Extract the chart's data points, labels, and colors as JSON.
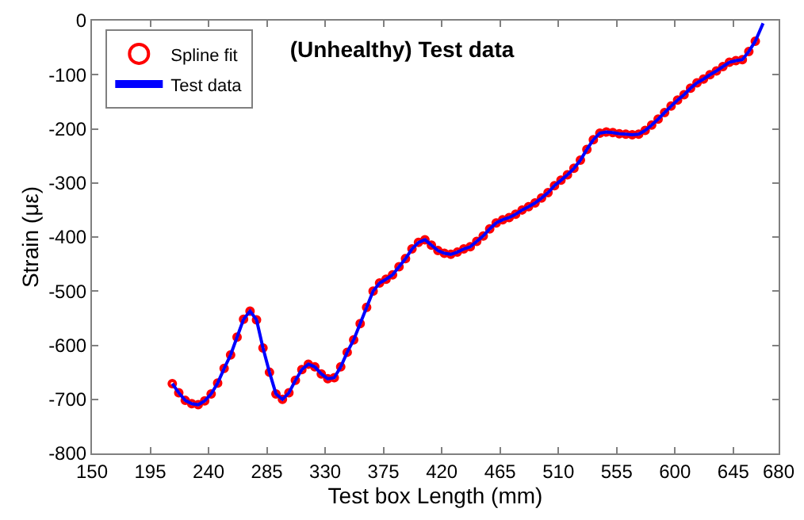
{
  "chart_data": {
    "type": "line",
    "title": "(Unhealthy) Test data",
    "xlabel": "Test box Length (mm)",
    "ylabel": "Strain (με)",
    "xlim": [
      150,
      680
    ],
    "xticks": [
      150,
      195,
      240,
      285,
      330,
      375,
      420,
      465,
      510,
      555,
      600,
      645,
      680
    ],
    "ylim": [
      -800,
      0
    ],
    "yticks": [
      -800,
      -700,
      -600,
      -500,
      -400,
      -300,
      -200,
      -100,
      0
    ],
    "grid": false,
    "legend": "top left",
    "series": [
      {
        "name": "Spline fit",
        "type": "scatter",
        "marker": "circle",
        "color": "#ff0000",
        "x": [
          212,
          217,
          222,
          227,
          232,
          237,
          242,
          247,
          252,
          257,
          262,
          267,
          272,
          277,
          282,
          287,
          292,
          297,
          302,
          307,
          312,
          317,
          322,
          327,
          332,
          337,
          342,
          347,
          352,
          357,
          362,
          367,
          372,
          377,
          382,
          387,
          392,
          397,
          402,
          407,
          412,
          417,
          422,
          427,
          432,
          437,
          442,
          447,
          452,
          457,
          462,
          467,
          472,
          477,
          482,
          487,
          492,
          497,
          502,
          507,
          512,
          517,
          522,
          527,
          532,
          537,
          542,
          547,
          552,
          557,
          562,
          567,
          572,
          577,
          582,
          587,
          592,
          597,
          602,
          607,
          612,
          617,
          622,
          627,
          632,
          637,
          642,
          647,
          652,
          657,
          662
        ],
        "values": [
          -671,
          -688,
          -702,
          -708,
          -710,
          -703,
          -690,
          -670,
          -643,
          -618,
          -585,
          -552,
          -537,
          -553,
          -605,
          -650,
          -690,
          -700,
          -688,
          -665,
          -645,
          -635,
          -640,
          -653,
          -662,
          -660,
          -640,
          -613,
          -590,
          -560,
          -530,
          -500,
          -485,
          -478,
          -470,
          -455,
          -440,
          -422,
          -410,
          -405,
          -415,
          -425,
          -430,
          -432,
          -428,
          -422,
          -418,
          -408,
          -398,
          -385,
          -374,
          -368,
          -364,
          -358,
          -350,
          -344,
          -337,
          -328,
          -318,
          -305,
          -295,
          -285,
          -273,
          -258,
          -238,
          -220,
          -208,
          -206,
          -207,
          -209,
          -210,
          -211,
          -210,
          -203,
          -193,
          -182,
          -170,
          -158,
          -147,
          -137,
          -125,
          -115,
          -108,
          -100,
          -93,
          -85,
          -77,
          -74,
          -72,
          -57,
          -38
        ]
      },
      {
        "name": "Test data",
        "color": "#0000ff",
        "x": [
          212,
          217,
          222,
          227,
          232,
          237,
          242,
          247,
          252,
          257,
          262,
          267,
          272,
          277,
          282,
          287,
          292,
          297,
          302,
          307,
          312,
          317,
          322,
          327,
          332,
          337,
          342,
          347,
          352,
          357,
          362,
          367,
          372,
          377,
          382,
          387,
          392,
          397,
          402,
          407,
          412,
          417,
          422,
          427,
          432,
          437,
          442,
          447,
          452,
          457,
          462,
          467,
          472,
          477,
          482,
          487,
          492,
          497,
          502,
          507,
          512,
          517,
          522,
          527,
          532,
          537,
          542,
          547,
          552,
          557,
          562,
          567,
          572,
          577,
          582,
          587,
          592,
          597,
          602,
          607,
          612,
          617,
          622,
          627,
          632,
          637,
          642,
          647,
          652,
          657,
          662,
          668
        ],
        "values": [
          -671,
          -688,
          -702,
          -708,
          -710,
          -703,
          -690,
          -670,
          -643,
          -618,
          -585,
          -552,
          -537,
          -553,
          -605,
          -650,
          -690,
          -700,
          -688,
          -665,
          -645,
          -635,
          -640,
          -653,
          -662,
          -660,
          -640,
          -613,
          -590,
          -560,
          -530,
          -500,
          -485,
          -478,
          -470,
          -455,
          -440,
          -422,
          -410,
          -405,
          -415,
          -425,
          -430,
          -432,
          -428,
          -422,
          -418,
          -408,
          -398,
          -385,
          -374,
          -368,
          -364,
          -358,
          -350,
          -344,
          -337,
          -328,
          -318,
          -305,
          -295,
          -285,
          -273,
          -258,
          -238,
          -220,
          -208,
          -206,
          -207,
          -209,
          -210,
          -211,
          -210,
          -203,
          -193,
          -182,
          -170,
          -158,
          -147,
          -137,
          -125,
          -115,
          -108,
          -100,
          -93,
          -85,
          -77,
          -74,
          -72,
          -57,
          -38,
          -5
        ]
      }
    ]
  }
}
